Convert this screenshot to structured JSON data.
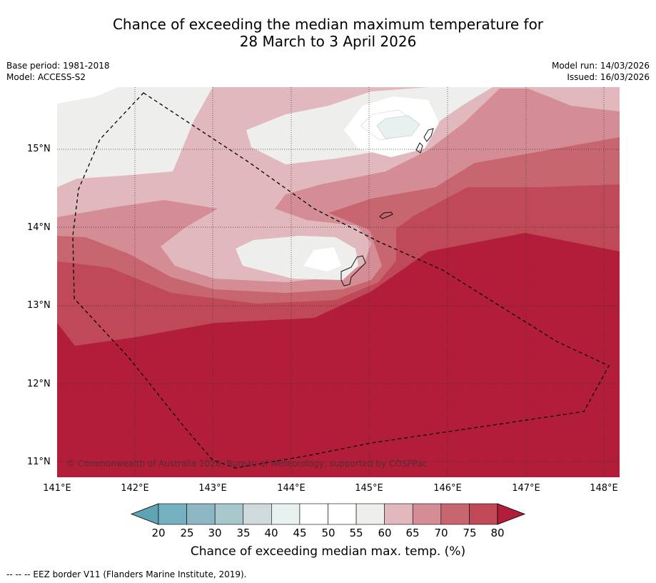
{
  "title_line1": "Chance of exceeding the median maximum temperature for",
  "title_line2": "28 March to 3 April 2026",
  "base_period": "Base period: 1981-2018",
  "model": "Model: ACCESS-S2",
  "model_run": "Model run: 14/03/2026",
  "issued": "Issued: 16/03/2026",
  "map": {
    "lat_labels": [
      "15°N",
      "14°N",
      "13°N",
      "12°N",
      "11°N"
    ],
    "lon_labels": [
      "141°E",
      "142°E",
      "143°E",
      "144°E",
      "145°E",
      "146°E",
      "147°E",
      "148°E"
    ],
    "copyright": "© Commonwealth of Australia 2026, Bureau of Meteorology, supported by COSPPac",
    "eez_line_style": "dashed"
  },
  "colorbar": {
    "ticks": [
      "20",
      "25",
      "30",
      "35",
      "40",
      "45",
      "50",
      "55",
      "60",
      "65",
      "70",
      "75",
      "80"
    ],
    "colors": [
      "#5ea4b5",
      "#74b0bf",
      "#8cb7c3",
      "#a8c7cc",
      "#cfdadd",
      "#e8f0f0",
      "#ffffff",
      "#ffffff",
      "#eeeeec",
      "#e0b8bd",
      "#d48c95",
      "#c7666f",
      "#bf4957",
      "#b21d3a"
    ],
    "title": "Chance of exceeding median max. temp. (%)"
  },
  "footnote": "--  --  -- EEZ border V11 (Flanders Marine Institute, 2019)."
}
